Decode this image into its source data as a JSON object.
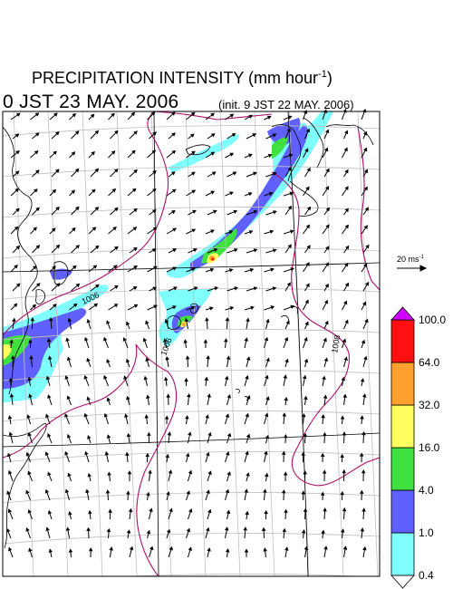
{
  "header": {
    "title": "PRECIPITATION INTENSITY (mm hour",
    "title_exponent": "-1",
    "title_close": ")",
    "valid_time": "0 JST 23 MAY. 2006",
    "init_time": "(init. 9 JST 22 MAY. 2006)"
  },
  "wind_scale": {
    "label": "20 ms",
    "exponent": "-1"
  },
  "colorbar": {
    "levels": [
      "0.4",
      "1.0",
      "4.0",
      "16.0",
      "32.0",
      "64.0",
      "100.0"
    ],
    "colors": [
      "#80ffff",
      "#6060ff",
      "#40e040",
      "#ffff60",
      "#ffa030",
      "#ff1010",
      "#d000ff"
    ]
  },
  "isobars": {
    "labels": [
      "1006",
      "1006",
      "1008"
    ],
    "color": "#b0106a"
  },
  "colors": {
    "coast": "#000000",
    "grid": "#c0c0c0",
    "vector": "#000000"
  }
}
